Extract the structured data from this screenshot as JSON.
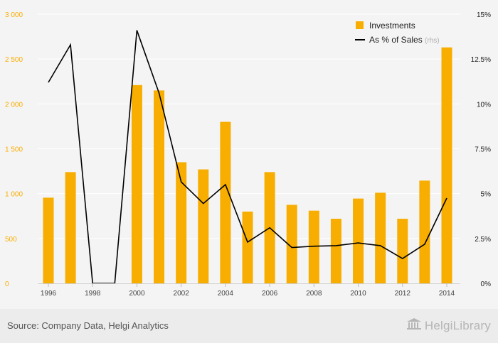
{
  "chart_data": {
    "type": "bar",
    "categories": [
      "1996",
      "1997",
      "1998",
      "1999",
      "2000",
      "2001",
      "2002",
      "2003",
      "2004",
      "2005",
      "2006",
      "2007",
      "2008",
      "2009",
      "2010",
      "2011",
      "2012",
      "2013",
      "2014"
    ],
    "x_tick_labels": [
      "1996",
      "1998",
      "2000",
      "2002",
      "2004",
      "2006",
      "2008",
      "2010",
      "2012",
      "2014"
    ],
    "series": [
      {
        "name": "Investments",
        "type": "bar",
        "axis": "left",
        "color": "#f8ae00",
        "values": [
          955,
          1240,
          0,
          0,
          2210,
          2150,
          1350,
          1270,
          1800,
          800,
          1240,
          875,
          810,
          720,
          945,
          1010,
          720,
          1145,
          2630
        ]
      },
      {
        "name": "As % of Sales",
        "name_suffix": "(rhs)",
        "type": "line",
        "axis": "right",
        "color": "#000000",
        "values": [
          11.2,
          13.3,
          0,
          0,
          14.1,
          10.6,
          5.65,
          4.45,
          5.5,
          2.3,
          3.1,
          2.0,
          2.07,
          2.1,
          2.25,
          2.1,
          1.38,
          2.18,
          4.75
        ]
      }
    ],
    "y_left": {
      "ylim": [
        0,
        3000
      ],
      "ticks": [
        0,
        500,
        1000,
        1500,
        2000,
        2500,
        3000
      ],
      "tick_labels": [
        "0",
        "500",
        "1 000",
        "1 500",
        "2 000",
        "2 500",
        "3 000"
      ],
      "color": "#f8ae00"
    },
    "y_right": {
      "ylim": [
        0,
        15
      ],
      "ticks": [
        0,
        2.5,
        5,
        7.5,
        10,
        12.5,
        15
      ],
      "tick_labels": [
        "0%",
        "2.5%",
        "5%",
        "7.5%",
        "10%",
        "12.5%",
        "15%"
      ],
      "color": "#222222"
    },
    "grid": true,
    "grid_color": "#ffffff",
    "legend_position": "top-right",
    "title": "",
    "xlabel": "",
    "ylabel": ""
  },
  "footer": {
    "source": "Source: Company Data, Helgi Analytics",
    "brand": "HelgiLibrary",
    "brand_icon": "library-building-icon"
  }
}
